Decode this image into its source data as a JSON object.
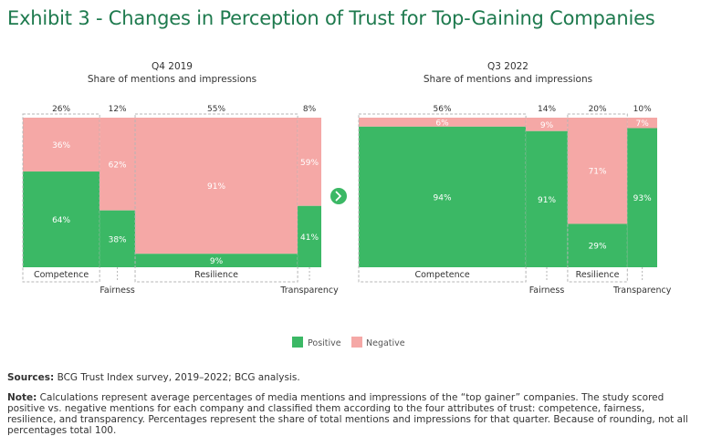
{
  "title": "Exhibit 3 - Changes in Perception of Trust for Top-Gaining Companies",
  "chart_data": [
    {
      "type": "marimekko",
      "period": "Q4 2019",
      "subtitle": "Share of mentions and impressions",
      "categories": [
        "Competence",
        "Fairness",
        "Resilience",
        "Transparency"
      ],
      "widths": [
        26,
        12,
        55,
        8
      ],
      "width_labels": [
        "26%",
        "12%",
        "55%",
        "8%"
      ],
      "series": [
        {
          "name": "Positive",
          "values": [
            64,
            38,
            9,
            41
          ],
          "labels": [
            "64%",
            "38%",
            "9%",
            "41%"
          ]
        },
        {
          "name": "Negative",
          "values": [
            36,
            62,
            91,
            59
          ],
          "labels": [
            "36%",
            "62%",
            "91%",
            "59%"
          ]
        }
      ]
    },
    {
      "type": "marimekko",
      "period": "Q3 2022",
      "subtitle": "Share of mentions and impressions",
      "categories": [
        "Competence",
        "Fairness",
        "Resilience",
        "Transparency"
      ],
      "widths": [
        56,
        14,
        20,
        10
      ],
      "width_labels": [
        "56%",
        "14%",
        "20%",
        "10%"
      ],
      "series": [
        {
          "name": "Positive",
          "values": [
            94,
            91,
            29,
            93
          ],
          "labels": [
            "94%",
            "91%",
            "29%",
            "93%"
          ]
        },
        {
          "name": "Negative",
          "values": [
            6,
            9,
            71,
            7
          ],
          "labels": [
            "6%",
            "9%",
            "71%",
            "7%"
          ]
        }
      ]
    }
  ],
  "legend": {
    "positive": "Positive",
    "negative": "Negative"
  },
  "colors": {
    "positive": "#3bb865",
    "negative": "#f5a8a6",
    "title": "#1e7a4e",
    "arrow": "#3bb865"
  },
  "arrow_icon": "chevron-right-icon",
  "footer": {
    "sources_label": "Sources:",
    "sources_text": " BCG Trust Index survey, 2019–2022; BCG analysis.",
    "note_label": "Note:",
    "note_text": " Calculations represent average percentages of media mentions and impressions of the “top gainer” companies. The study scored positive vs. negative mentions for each company and classified them according to the four attributes of trust: competence, fairness, resilience, and transparency. Percentages represent the share of total mentions and impressions for that quarter. Because of rounding, not all percentages total 100."
  }
}
